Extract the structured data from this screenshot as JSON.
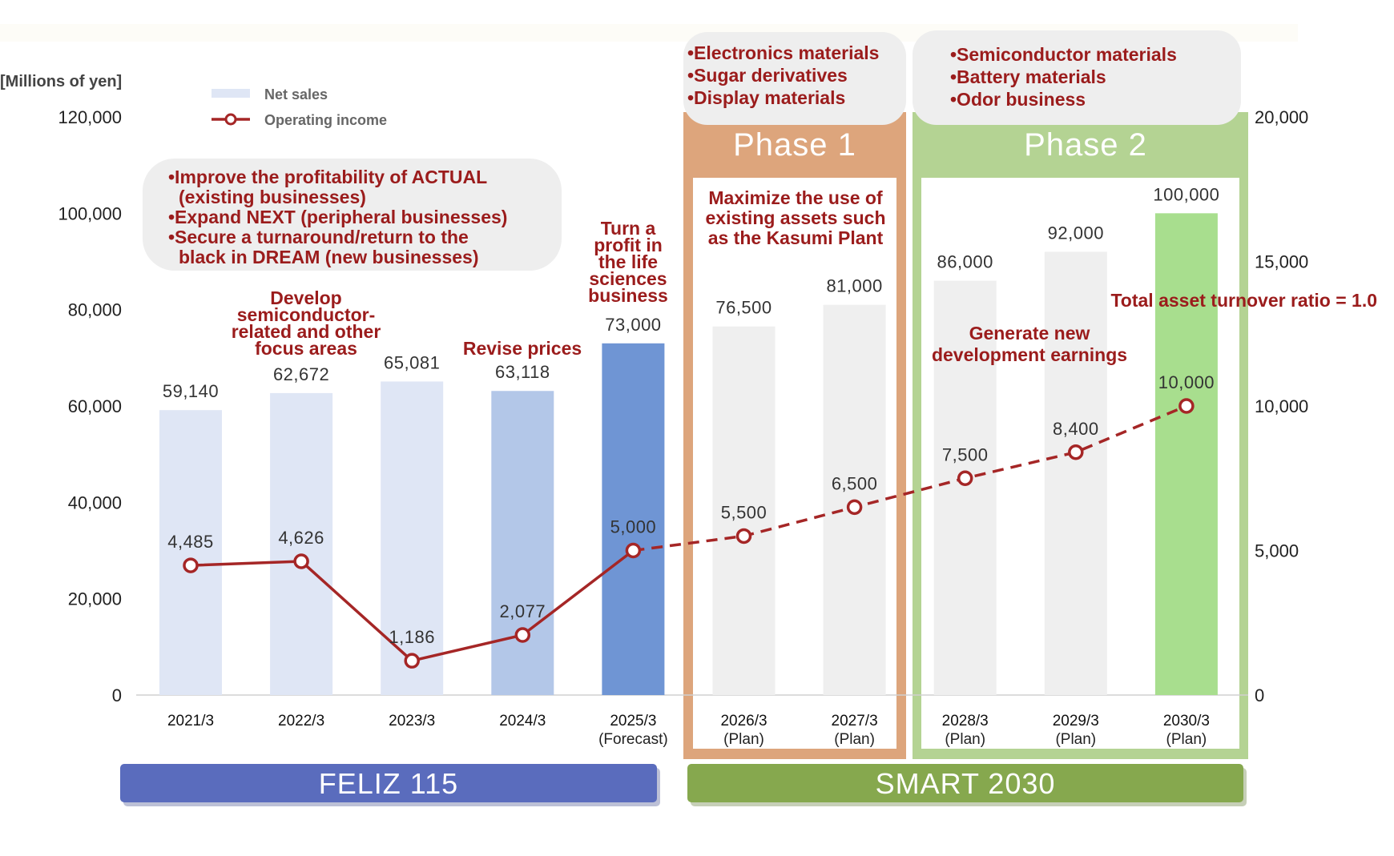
{
  "colors": {
    "accent_red": "#9b1c1c",
    "line_red": "#a52626",
    "bar_light": "#dfe6f5",
    "bar_mid": "#b3c7e8",
    "bar_dark": "#6f95d4",
    "bar_plan": "#efefef",
    "bar_final": "#a8de8e",
    "phase1": "#dda57c",
    "phase2": "#b4d393",
    "feliz": "#5a6cbd",
    "smart": "#86a84e",
    "callout_bg": "#eeeeee"
  },
  "chart_data": {
    "type": "bar+line",
    "unit_label": "[Millions of yen]",
    "categories": [
      "2021/3",
      "2022/3",
      "2023/3",
      "2024/3",
      "2025/3",
      "2026/3",
      "2027/3",
      "2028/3",
      "2029/3",
      "2030/3"
    ],
    "category_sublabels": [
      "",
      "",
      "",
      "",
      "(Forecast)",
      "(Plan)",
      "(Plan)",
      "(Plan)",
      "(Plan)",
      "(Plan)"
    ],
    "series": [
      {
        "name": "Net sales",
        "type": "bar",
        "axis": "left",
        "values": [
          59140,
          62672,
          65081,
          63118,
          73000,
          76500,
          81000,
          86000,
          92000,
          100000
        ],
        "labels": [
          "59,140",
          "62,672",
          "65,081",
          "63,118",
          "73,000",
          "76,500",
          "81,000",
          "86,000",
          "92,000",
          "100,000"
        ],
        "colors": [
          "#dfe6f5",
          "#dfe6f5",
          "#dfe6f5",
          "#b3c7e8",
          "#6f95d4",
          "#efefef",
          "#efefef",
          "#efefef",
          "#efefef",
          "#a8de8e"
        ]
      },
      {
        "name": "Operating income",
        "type": "line",
        "axis": "right",
        "values": [
          4485,
          4626,
          1186,
          2077,
          5000,
          5500,
          6500,
          7500,
          8400,
          10000
        ],
        "labels": [
          "4,485",
          "4,626",
          "1,186",
          "2,077",
          "5,000",
          "5,500",
          "6,500",
          "7,500",
          "8,400",
          "10,000"
        ],
        "line_style": "solid through 2025/3, dashed for plan years"
      }
    ],
    "left_axis": {
      "range": [
        0,
        120000
      ],
      "ticks": [
        "0",
        "20,000",
        "40,000",
        "60,000",
        "80,000",
        "100,000",
        "120,000"
      ]
    },
    "right_axis": {
      "range": [
        0,
        20000
      ],
      "ticks": [
        "0",
        "5,000",
        "10,000",
        "15,000",
        "20,000"
      ]
    },
    "legend": [
      "Net sales",
      "Operating income"
    ],
    "legend_position": "top-left",
    "grid": false
  },
  "annotations": {
    "feliz_goals": [
      "•Improve the profitability of ACTUAL",
      "(existing businesses)",
      "•Expand NEXT (peripheral businesses)",
      "•Secure a turnaround/return to the",
      "black in DREAM (new businesses)"
    ],
    "develop": [
      "Develop",
      "semiconductor-",
      "related and other",
      "focus areas"
    ],
    "revise": "Revise prices",
    "turn_profit": [
      "Turn a",
      "profit in",
      "the life",
      "sciences",
      "business"
    ],
    "phase1_items": [
      "•Electronics materials",
      "•Sugar derivatives",
      "•Display materials"
    ],
    "phase2_items": [
      "•Semiconductor materials",
      "•Battery materials",
      "•Odor business"
    ],
    "maximize": [
      "Maximize the use of",
      "existing assets such",
      "as the Kasumi Plant"
    ],
    "generate": [
      "Generate new",
      "development earnings"
    ],
    "turnover": "Total asset turnover ratio = 1.0"
  },
  "phases": {
    "phase1": "Phase 1",
    "phase2": "Phase 2"
  },
  "plans": {
    "feliz": "FELIZ 115",
    "smart": "SMART 2030"
  }
}
